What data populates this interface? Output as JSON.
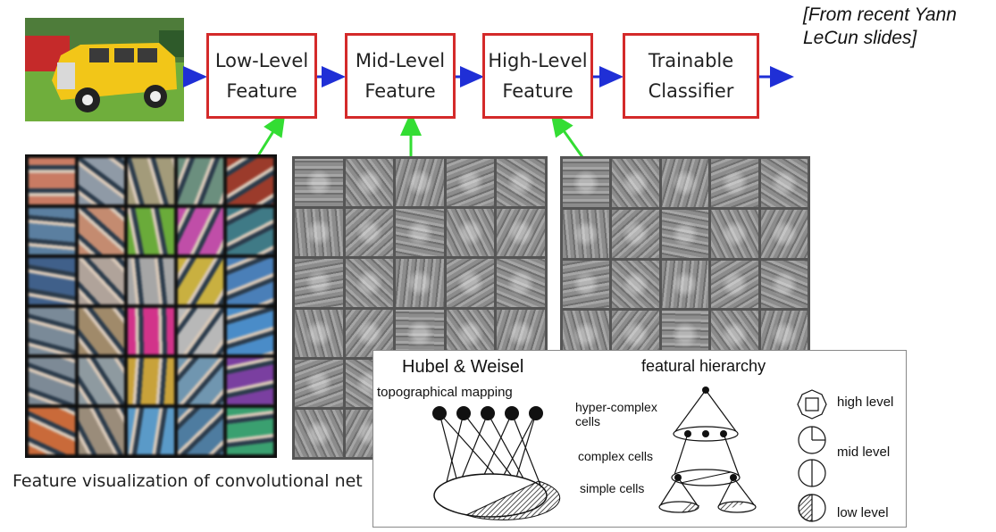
{
  "credit": {
    "line1": "[From recent Yann",
    "line2": "LeCun slides]"
  },
  "pipeline": [
    {
      "line1": "Low-Level",
      "line2": "Feature"
    },
    {
      "line1": "Mid-Level",
      "line2": "Feature"
    },
    {
      "line1": "High-Level",
      "line2": "Feature"
    },
    {
      "line1": "Trainable",
      "line2": "Classifier"
    }
  ],
  "caption": "Feature visualization of convolutional net",
  "colors": {
    "box_border": "#d42a2a",
    "flow_arrow": "#1f2fd6",
    "link_arrow": "#33dd33"
  },
  "inset": {
    "title_left": "Hubel & Weisel",
    "title_right": "featural hierarchy",
    "topo_label": "topographical mapping",
    "hyper_line1": "hyper-complex",
    "hyper_line2": "cells",
    "complex_label": "complex cells",
    "simple_label": "simple cells",
    "legend": [
      "high level",
      "mid level",
      "low level"
    ]
  },
  "low_level_filters": [
    "#c97b63",
    "#8f9aa6",
    "#a39b7a",
    "#6b8f7e",
    "#9b3b2b",
    "#5b7fa0",
    "#c48b70",
    "#6aab3a",
    "#c04ea8",
    "#3f7a86",
    "#40608a",
    "#b0a39a",
    "#a6a6a6",
    "#c9b040",
    "#4a7fb8",
    "#7a8a98",
    "#a08a6a",
    "#d2338a",
    "#b8b8b8",
    "#4a8cc8",
    "#7d8a96",
    "#8e9aa0",
    "#c8a23a",
    "#7096b0",
    "#7a3fa0",
    "#c96a3a",
    "#9a8c7a",
    "#5a9ac8",
    "#4e7ca0",
    "#3aa070"
  ]
}
